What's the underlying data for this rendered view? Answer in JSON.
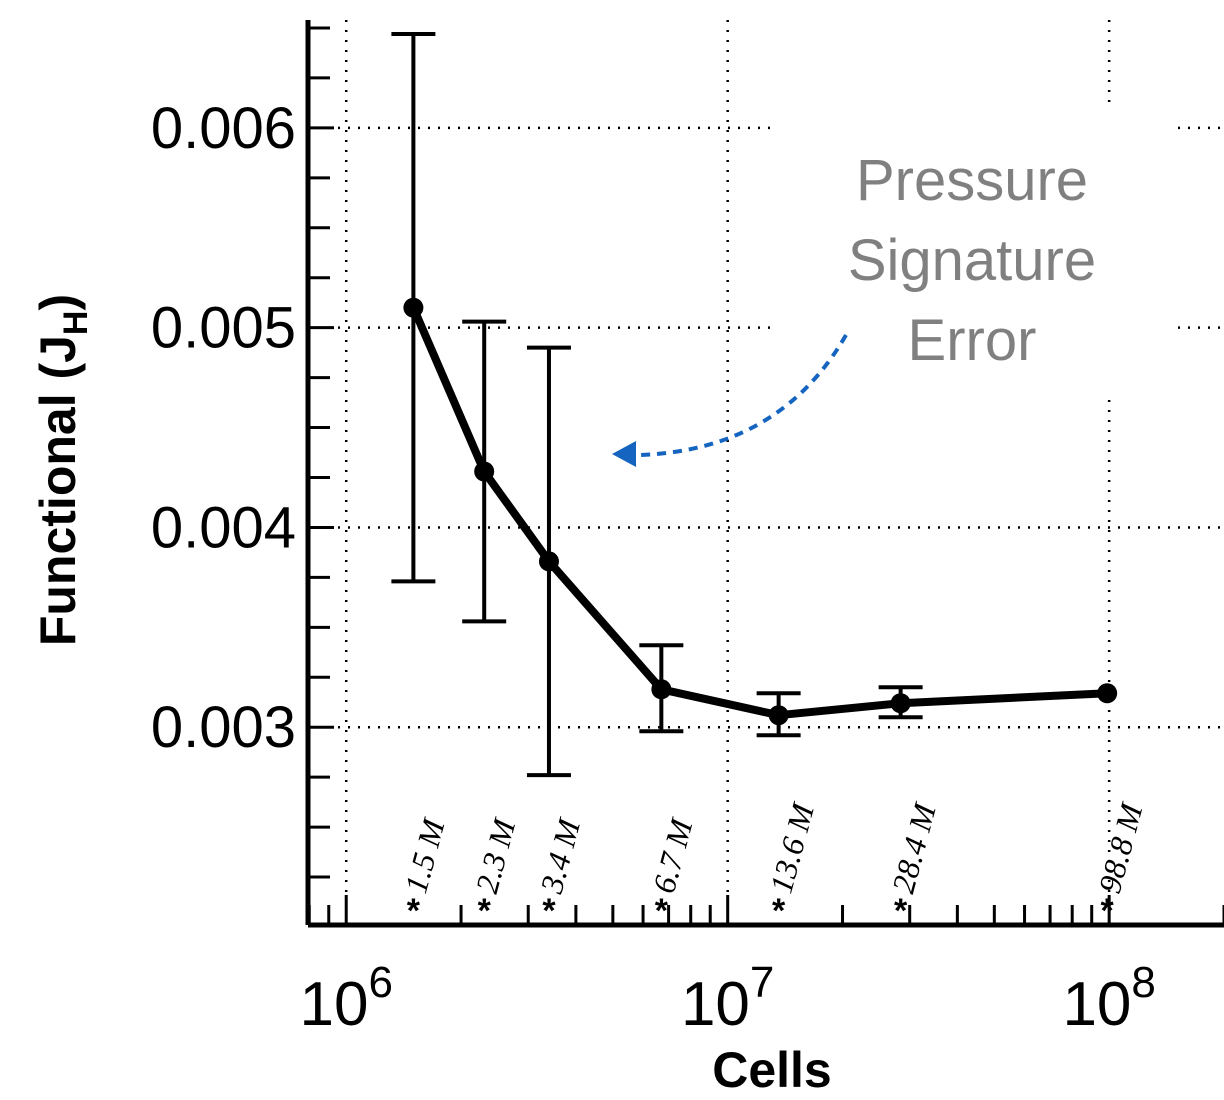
{
  "chart_data": {
    "type": "line",
    "xlabel": "Cells",
    "ylabel": "Functional (J",
    "ylabel_sub": "H",
    "ylabel_close": ")",
    "x_scale": "log",
    "xlim": [
      794000,
      200000000
    ],
    "ylim": [
      0.00201,
      0.00654
    ],
    "x_ticks": [
      {
        "value": 1000000,
        "base": "10",
        "exp": "6"
      },
      {
        "value": 10000000,
        "base": "10",
        "exp": "7"
      },
      {
        "value": 100000000,
        "base": "10",
        "exp": "8"
      }
    ],
    "y_ticks": [
      {
        "value": 0.003,
        "label": "0.003"
      },
      {
        "value": 0.004,
        "label": "0.004"
      },
      {
        "value": 0.005,
        "label": "0.005"
      },
      {
        "value": 0.006,
        "label": "0.006"
      }
    ],
    "grid": true,
    "series": [
      {
        "color": "#000000",
        "points": [
          {
            "x": 1500000,
            "y": 0.0051,
            "err_low": 0.00373,
            "err_high": 0.00647,
            "label": "1.5 M"
          },
          {
            "x": 2300000,
            "y": 0.00428,
            "err_low": 0.00353,
            "err_high": 0.00503,
            "label": "2.3 M"
          },
          {
            "x": 3400000,
            "y": 0.00383,
            "err_low": 0.00276,
            "err_high": 0.0049,
            "label": "3.4 M"
          },
          {
            "x": 6700000,
            "y": 0.00319,
            "err_low": 0.00298,
            "err_high": 0.00341,
            "label": "6.7 M"
          },
          {
            "x": 13600000,
            "y": 0.00306,
            "err_low": 0.00296,
            "err_high": 0.00317,
            "label": "13.6 M"
          },
          {
            "x": 28400000,
            "y": 0.00312,
            "err_low": 0.00305,
            "err_high": 0.0032,
            "label": "28.4 M"
          },
          {
            "x": 98800000,
            "y": 0.00317,
            "err_low": 0.00317,
            "err_high": 0.00317,
            "label": "98.8 M"
          }
        ]
      }
    ],
    "annotation": {
      "lines": [
        "Pressure",
        "Signature",
        "Error"
      ],
      "text_color": "#808080",
      "arrow_color": "#1565c0"
    }
  }
}
